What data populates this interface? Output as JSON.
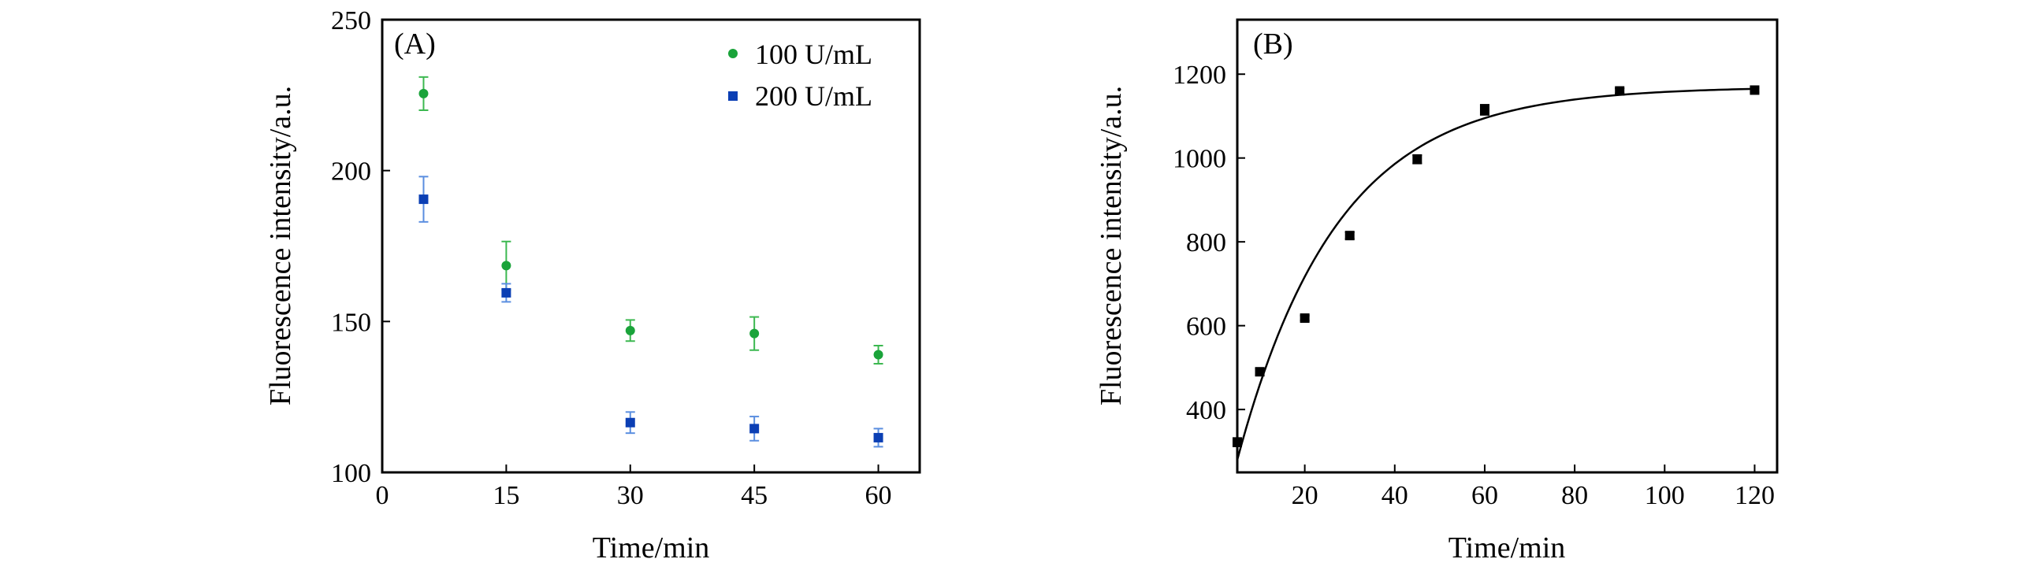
{
  "colors": {
    "series_100": "#1aa33a",
    "series_100_err": "#3cb850",
    "series_200": "#0b3fb4",
    "series_200_err": "#5a8ee0",
    "panel_b": "#000000"
  },
  "chart_data": [
    {
      "type": "scatter",
      "panel_label": "(A)",
      "xlabel": "Time/min",
      "ylabel": "Fluorescence intensity/a.u.",
      "xlim": [
        0,
        65
      ],
      "ylim": [
        100,
        250
      ],
      "xticks": [
        0,
        15,
        30,
        45,
        60
      ],
      "yticks": [
        100,
        150,
        200,
        250
      ],
      "grid": false,
      "legend_position": "top-right",
      "series": [
        {
          "name": "100 U/mL",
          "marker": "circle",
          "color": "#1aa33a",
          "x": [
            5,
            15,
            30,
            45,
            60
          ],
          "y": [
            225.5,
            168.5,
            147,
            146,
            139
          ],
          "err": [
            5.5,
            8,
            3.5,
            5.5,
            3
          ]
        },
        {
          "name": "200 U/mL",
          "marker": "square",
          "color": "#0b3fb4",
          "x": [
            5,
            15,
            30,
            45,
            60
          ],
          "y": [
            190.5,
            159.5,
            116.5,
            114.5,
            111.5
          ],
          "err": [
            7.5,
            3,
            3.5,
            4,
            3
          ]
        }
      ]
    },
    {
      "type": "scatter",
      "panel_label": "(B)",
      "xlabel": "Time/min",
      "ylabel": "Fluorescence intensity/a.u.",
      "xlim": [
        5,
        125
      ],
      "ylim": [
        250,
        1330
      ],
      "xticks": [
        20,
        40,
        60,
        80,
        100,
        120
      ],
      "yticks": [
        400,
        600,
        800,
        1000,
        1200
      ],
      "grid": false,
      "legend_position": "none",
      "series": [
        {
          "marker": "square",
          "color": "#000000",
          "x": [
            5,
            10,
            20,
            30,
            45,
            60,
            90,
            120
          ],
          "y": [
            322,
            490,
            618,
            815,
            997,
            1115,
            1160,
            1162
          ],
          "err": [
            10,
            8,
            6,
            8,
            10,
            12,
            6,
            5
          ]
        }
      ],
      "fit_curve": {
        "model": "exponential rise to maximum",
        "y0": 280,
        "ymax": 1170,
        "k": 0.045
      }
    }
  ]
}
